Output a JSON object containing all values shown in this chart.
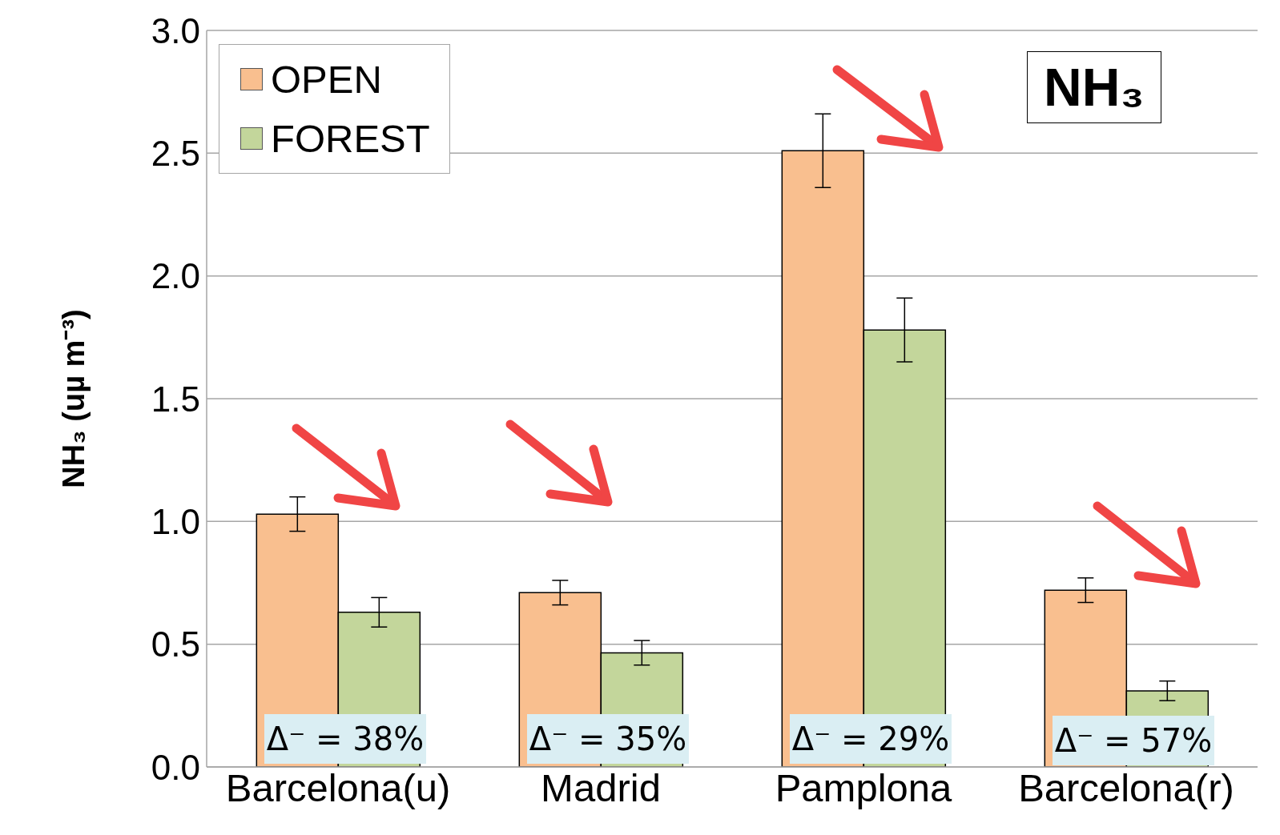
{
  "chart_data": {
    "type": "bar",
    "title": "NH₃",
    "ylabel": "NH₃  (uµ m⁻³)",
    "categories": [
      "Barcelona(u)",
      "Madrid",
      "Pamplona",
      "Barcelona(r)"
    ],
    "series": [
      {
        "name": "OPEN",
        "color": "#f9bf8f",
        "values": [
          1.03,
          0.71,
          2.51,
          0.72
        ],
        "errors": [
          0.07,
          0.05,
          0.15,
          0.05
        ]
      },
      {
        "name": "FOREST",
        "color": "#c3d69b",
        "values": [
          0.63,
          0.465,
          1.78,
          0.31
        ],
        "errors": [
          0.06,
          0.05,
          0.13,
          0.04
        ]
      }
    ],
    "ylim": [
      0,
      3
    ],
    "yticks": [
      {
        "value": 0,
        "label": "0.0"
      },
      {
        "value": 0.5,
        "label": "0.5"
      },
      {
        "value": 1,
        "label": "1.0"
      },
      {
        "value": 1.5,
        "label": "1.5"
      },
      {
        "value": 2,
        "label": "2.0"
      },
      {
        "value": 2.5,
        "label": "2.5"
      },
      {
        "value": 3,
        "label": "3.0"
      }
    ],
    "grid": "y",
    "legend": "top left",
    "annotations": [
      "Δ⁻ = 38%",
      "Δ⁻ = 35%",
      "Δ⁻ = 29%",
      "Δ⁻ = 57%"
    ]
  }
}
